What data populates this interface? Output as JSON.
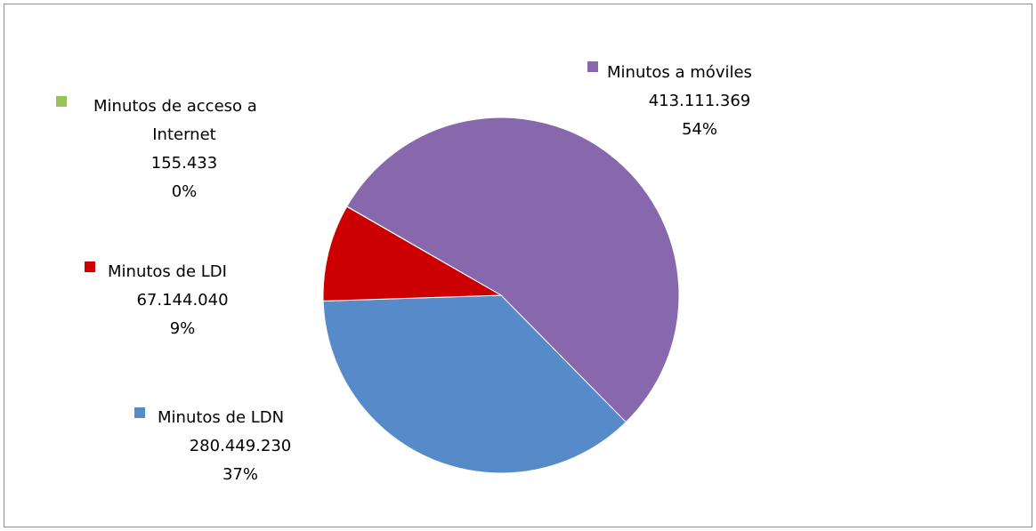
{
  "chart_data": {
    "type": "pie",
    "title": "",
    "slices": [
      {
        "label": "Minutos a móviles",
        "value": 413111369,
        "value_label": "413.111.369",
        "percent_label": "54%",
        "color": "#8868ad"
      },
      {
        "label": "Minutos de LDN",
        "value": 280449230,
        "value_label": "280.449.230",
        "percent_label": "37%",
        "color": "#578ac8"
      },
      {
        "label": "Minutos de LDI",
        "value": 67144040,
        "value_label": "67.144.040",
        "percent_label": "9%",
        "color": "#cc0000"
      },
      {
        "label": "Minutos de acceso a Internet",
        "value": 155433,
        "value_label": "155.433",
        "percent_label": "0%",
        "color": "#98c25a"
      }
    ],
    "legend_placement": "data labels around the pie"
  }
}
